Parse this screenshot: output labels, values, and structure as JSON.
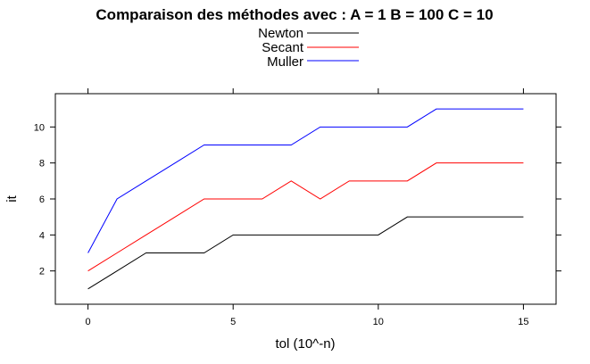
{
  "chart_data": {
    "type": "line",
    "title": "Comparaison des méthodes avec : A =  1 B =  100 C =  10",
    "xlabel": "tol (10^-n)",
    "ylabel": "it",
    "x": [
      0,
      1,
      2,
      3,
      4,
      5,
      6,
      7,
      8,
      9,
      10,
      11,
      12,
      13,
      14,
      15
    ],
    "xlim": [
      -1.125,
      16.125
    ],
    "ylim": [
      0.15,
      11.85
    ],
    "xticks": [
      "0",
      "5",
      "10",
      "15"
    ],
    "xtick_values": [
      0,
      5,
      10,
      15
    ],
    "yticks": [
      "2",
      "4",
      "6",
      "8",
      "10"
    ],
    "ytick_values": [
      2,
      4,
      6,
      8,
      10
    ],
    "grid": false,
    "legend_position": "top",
    "series": [
      {
        "name": "Newton",
        "color": "#000000",
        "values": [
          1,
          2,
          3,
          3,
          3,
          4,
          4,
          4,
          4,
          4,
          4,
          5,
          5,
          5,
          5,
          5
        ]
      },
      {
        "name": "Secant",
        "color": "#ff0000",
        "values": [
          2,
          3,
          4,
          5,
          6,
          6,
          6,
          7,
          6,
          7,
          7,
          7,
          8,
          8,
          8,
          8
        ]
      },
      {
        "name": "Muller",
        "color": "#0000ff",
        "values": [
          3,
          6,
          7,
          8,
          9,
          9,
          9,
          9,
          10,
          10,
          10,
          10,
          11,
          11,
          11,
          11
        ]
      }
    ]
  }
}
